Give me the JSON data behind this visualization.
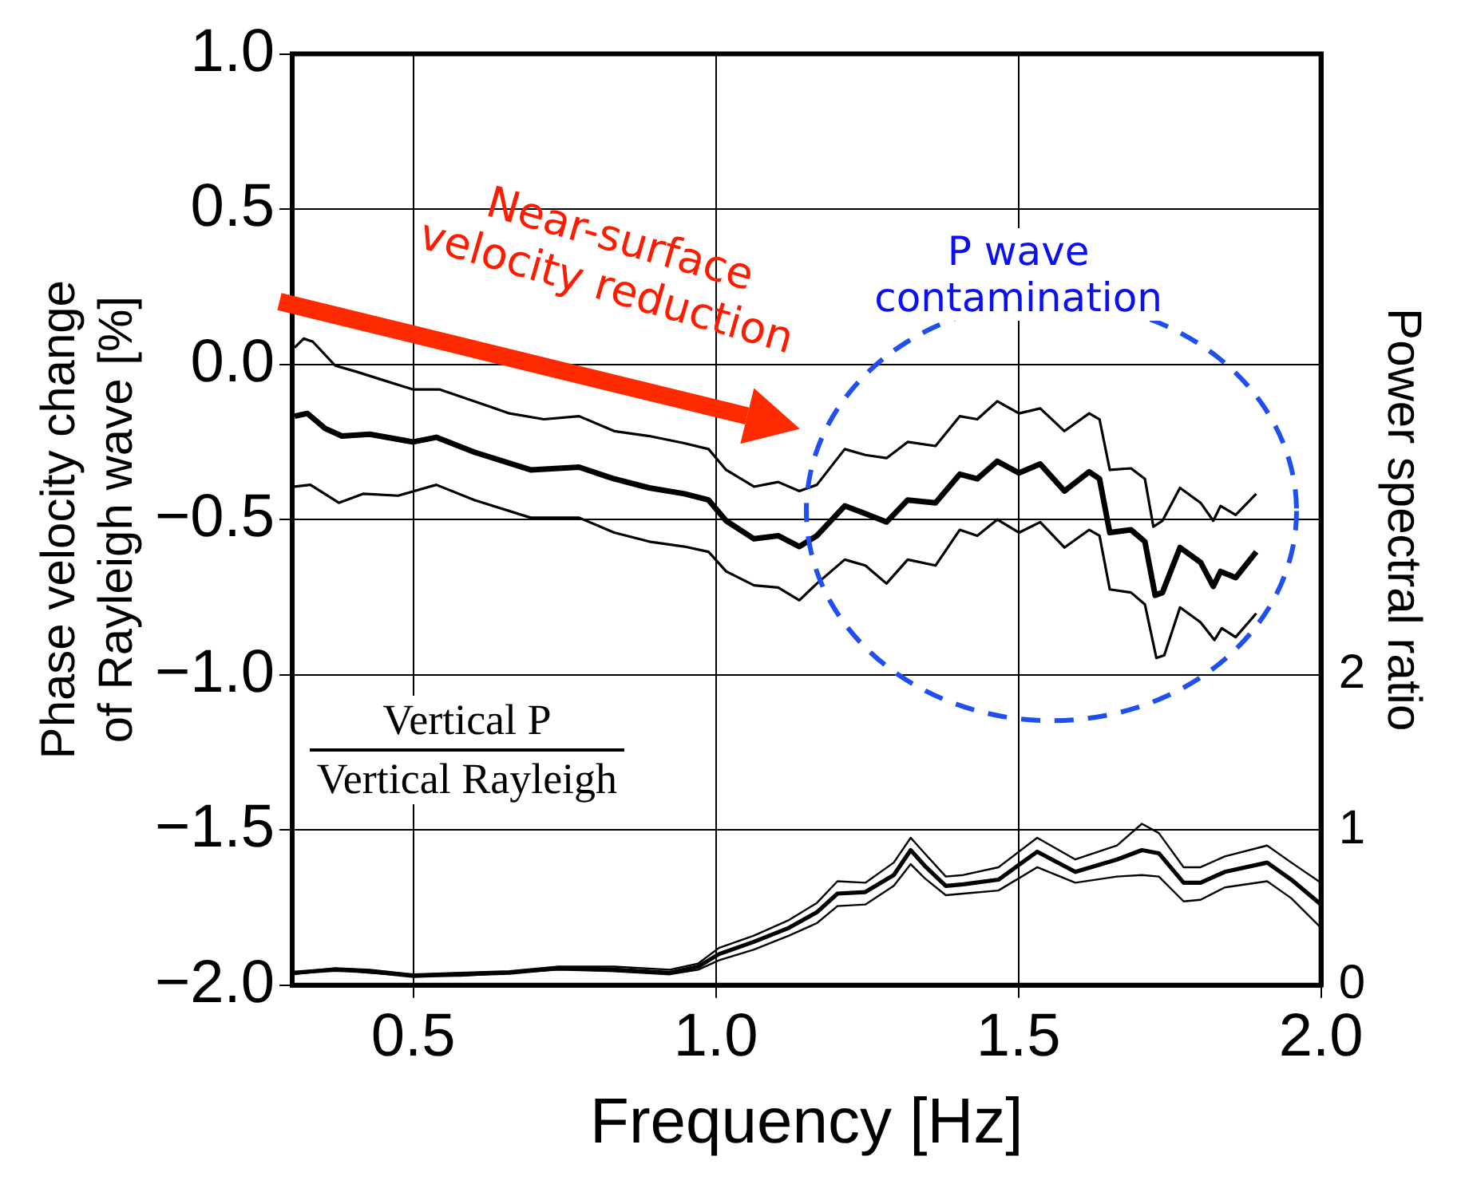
{
  "chart_data": {
    "type": "line",
    "xlabel": "Frequency [Hz]",
    "ylabel": "Phase velocity change\nof Rayleigh wave [%]",
    "y2label": "Power spectral ratio",
    "annotations": [
      "Near-surface\nvelocity reduction",
      "P wave\ncontamination",
      "Vertical P",
      "Vertical Rayleigh"
    ],
    "xlim": [
      0.3,
      2.0
    ],
    "xticks": [
      {
        "value": 0.5,
        "label": "0.5"
      },
      {
        "value": 1.0,
        "label": "1.0"
      },
      {
        "value": 1.5,
        "label": "1.5"
      },
      {
        "value": 2.0,
        "label": "2.0"
      }
    ],
    "ylim": [
      -2.0,
      1.0
    ],
    "yticks": [
      {
        "value": -2.0,
        "label": "−2.0"
      },
      {
        "value": -1.5,
        "label": "−1.5"
      },
      {
        "value": -1.0,
        "label": "−1.0"
      },
      {
        "value": -0.5,
        "label": "−0.5"
      },
      {
        "value": 0.0,
        "label": "0.0"
      },
      {
        "value": 0.5,
        "label": "0.5"
      },
      {
        "value": 1.0,
        "label": "1.0"
      }
    ],
    "y2lim": [
      0,
      6
    ],
    "y2ticks": [
      0,
      1,
      2
    ],
    "grid": true,
    "marker": "none",
    "series": [
      {
        "color": "#000000",
        "x": [
          0.304,
          0.319,
          0.334,
          0.371,
          0.405,
          0.452,
          0.5,
          0.544,
          0.601,
          0.659,
          0.716,
          0.774,
          0.832,
          0.89,
          0.948,
          0.988,
          1.017,
          1.063,
          1.103,
          1.138,
          1.167,
          1.213,
          1.247,
          1.282,
          1.317,
          1.363,
          1.403,
          1.432,
          1.465,
          1.501,
          1.536,
          1.576,
          1.617,
          1.634,
          1.651,
          1.686,
          1.709,
          1.723,
          1.738,
          1.767,
          1.801,
          1.822,
          1.834,
          1.859,
          1.893
        ],
        "values": [
          0.054,
          0.083,
          0.073,
          -0.004,
          -0.023,
          -0.052,
          -0.081,
          -0.081,
          -0.119,
          -0.158,
          -0.177,
          -0.167,
          -0.215,
          -0.231,
          -0.254,
          -0.273,
          -0.34,
          -0.394,
          -0.379,
          -0.408,
          -0.388,
          -0.273,
          -0.292,
          -0.302,
          -0.25,
          -0.263,
          -0.167,
          -0.177,
          -0.119,
          -0.158,
          -0.142,
          -0.215,
          -0.158,
          -0.177,
          -0.34,
          -0.335,
          -0.369,
          -0.523,
          -0.504,
          -0.398,
          -0.446,
          -0.504,
          -0.456,
          -0.485,
          -0.417
        ]
      },
      {
        "color": "#000000",
        "x": [
          0.304,
          0.325,
          0.354,
          0.382,
          0.428,
          0.5,
          0.538,
          0.601,
          0.694,
          0.774,
          0.832,
          0.89,
          0.948,
          0.988,
          1.017,
          1.063,
          1.103,
          1.138,
          1.167,
          1.213,
          1.247,
          1.282,
          1.317,
          1.363,
          1.403,
          1.432,
          1.465,
          1.501,
          1.536,
          1.576,
          1.617,
          1.634,
          1.651,
          1.686,
          1.709,
          1.726,
          1.738,
          1.767,
          1.801,
          1.822,
          1.834,
          1.859,
          1.893
        ],
        "values": [
          -0.167,
          -0.158,
          -0.206,
          -0.231,
          -0.225,
          -0.25,
          -0.235,
          -0.283,
          -0.34,
          -0.331,
          -0.369,
          -0.398,
          -0.417,
          -0.437,
          -0.504,
          -0.562,
          -0.552,
          -0.587,
          -0.552,
          -0.456,
          -0.481,
          -0.508,
          -0.437,
          -0.446,
          -0.354,
          -0.369,
          -0.312,
          -0.35,
          -0.321,
          -0.408,
          -0.346,
          -0.369,
          -0.542,
          -0.533,
          -0.571,
          -0.744,
          -0.735,
          -0.59,
          -0.638,
          -0.715,
          -0.667,
          -0.687,
          -0.604
        ]
      },
      {
        "color": "#000000",
        "x": [
          0.304,
          0.33,
          0.377,
          0.417,
          0.475,
          0.538,
          0.601,
          0.694,
          0.774,
          0.832,
          0.89,
          0.948,
          0.988,
          1.017,
          1.063,
          1.103,
          1.138,
          1.167,
          1.213,
          1.247,
          1.282,
          1.317,
          1.363,
          1.403,
          1.432,
          1.465,
          1.501,
          1.536,
          1.576,
          1.617,
          1.634,
          1.651,
          1.686,
          1.709,
          1.728,
          1.741,
          1.767,
          1.801,
          1.824,
          1.836,
          1.859,
          1.893
        ],
        "values": [
          -0.394,
          -0.388,
          -0.446,
          -0.417,
          -0.423,
          -0.388,
          -0.437,
          -0.494,
          -0.494,
          -0.542,
          -0.571,
          -0.587,
          -0.604,
          -0.667,
          -0.712,
          -0.719,
          -0.76,
          -0.706,
          -0.629,
          -0.648,
          -0.706,
          -0.629,
          -0.648,
          -0.533,
          -0.552,
          -0.5,
          -0.542,
          -0.508,
          -0.59,
          -0.533,
          -0.552,
          -0.725,
          -0.735,
          -0.773,
          -0.946,
          -0.937,
          -0.783,
          -0.831,
          -0.888,
          -0.85,
          -0.879,
          -0.802
        ]
      },
      {
        "color": "#000000",
        "axis": "y2",
        "x": [
          0.3,
          0.371,
          0.428,
          0.5,
          0.578,
          0.659,
          0.74,
          0.832,
          0.924,
          0.971,
          1.005,
          1.063,
          1.121,
          1.167,
          1.201,
          1.247,
          1.294,
          1.322,
          1.345,
          1.38,
          1.409,
          1.467,
          1.531,
          1.594,
          1.663,
          1.704,
          1.732,
          1.773,
          1.801,
          1.841,
          1.911,
          1.951,
          2.0
        ],
        "values": [
          0.08,
          0.11,
          0.1,
          0.07,
          0.08,
          0.09,
          0.12,
          0.12,
          0.1,
          0.14,
          0.24,
          0.32,
          0.42,
          0.53,
          0.67,
          0.66,
          0.79,
          0.95,
          0.85,
          0.7,
          0.71,
          0.76,
          0.95,
          0.81,
          0.9,
          1.04,
          0.98,
          0.76,
          0.76,
          0.83,
          0.9,
          0.79,
          0.66
        ]
      },
      {
        "color": "#000000",
        "axis": "y2",
        "x": [
          0.3,
          0.371,
          0.428,
          0.5,
          0.578,
          0.659,
          0.74,
          0.832,
          0.924,
          0.971,
          1.005,
          1.063,
          1.121,
          1.167,
          1.201,
          1.247,
          1.294,
          1.322,
          1.345,
          1.38,
          1.409,
          1.467,
          1.531,
          1.594,
          1.663,
          1.704,
          1.732,
          1.773,
          1.801,
          1.841,
          1.911,
          1.951,
          2.0
        ],
        "values": [
          0.08,
          0.1,
          0.09,
          0.06,
          0.07,
          0.08,
          0.11,
          0.1,
          0.08,
          0.12,
          0.2,
          0.28,
          0.37,
          0.47,
          0.59,
          0.6,
          0.71,
          0.87,
          0.77,
          0.64,
          0.65,
          0.68,
          0.86,
          0.73,
          0.81,
          0.87,
          0.85,
          0.66,
          0.66,
          0.73,
          0.79,
          0.68,
          0.52
        ]
      },
      {
        "color": "#000000",
        "axis": "y2",
        "x": [
          0.3,
          0.371,
          0.428,
          0.5,
          0.578,
          0.659,
          0.74,
          0.832,
          0.924,
          0.971,
          1.005,
          1.063,
          1.121,
          1.167,
          1.201,
          1.247,
          1.294,
          1.322,
          1.345,
          1.38,
          1.409,
          1.467,
          1.531,
          1.594,
          1.663,
          1.704,
          1.732,
          1.773,
          1.801,
          1.841,
          1.911,
          1.951,
          2.0
        ],
        "values": [
          0.07,
          0.1,
          0.08,
          0.06,
          0.06,
          0.08,
          0.1,
          0.09,
          0.07,
          0.1,
          0.16,
          0.23,
          0.32,
          0.4,
          0.51,
          0.52,
          0.64,
          0.78,
          0.69,
          0.58,
          0.59,
          0.61,
          0.76,
          0.66,
          0.7,
          0.71,
          0.7,
          0.54,
          0.55,
          0.63,
          0.67,
          0.56,
          0.37
        ]
      }
    ]
  }
}
